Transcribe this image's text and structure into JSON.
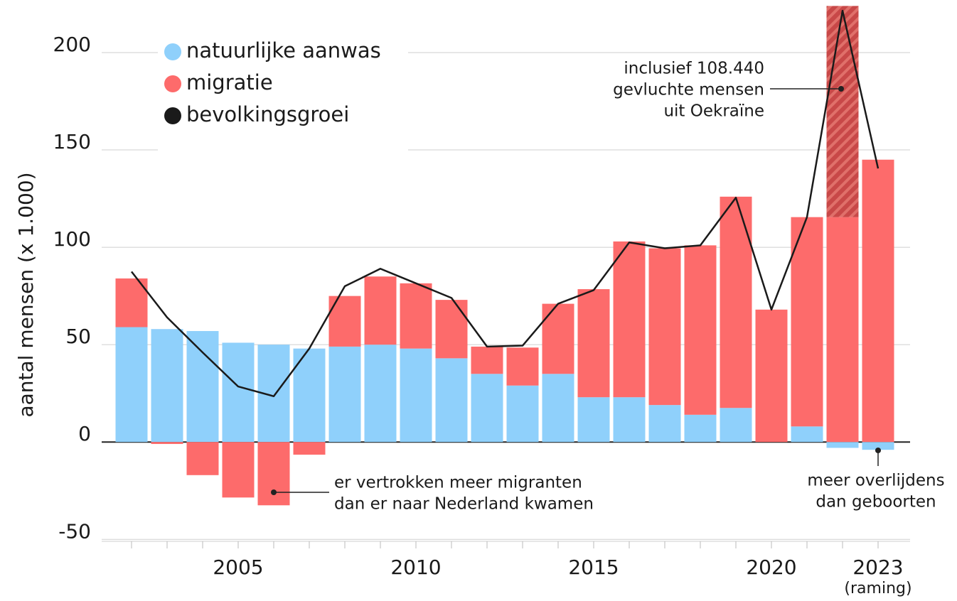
{
  "chart_data": {
    "type": "bar",
    "ylabel": "aantal mensen (x 1.000)",
    "x": [
      2002,
      2003,
      2004,
      2005,
      2006,
      2007,
      2008,
      2009,
      2010,
      2011,
      2012,
      2013,
      2014,
      2015,
      2016,
      2017,
      2018,
      2019,
      2020,
      2021,
      2022,
      2023
    ],
    "xlim": [
      2001.16,
      2023.9
    ],
    "xticks": [
      2005,
      2010,
      2015,
      2020,
      2023
    ],
    "xtick_note": "(raming)",
    "ylim": [
      -51,
      227
    ],
    "yticks": [
      -50,
      0,
      50,
      100,
      150,
      200
    ],
    "grid": true,
    "series": [
      {
        "name": "natuurlijke aanwas",
        "color": "#8fd0fb",
        "kind": "bar",
        "values": [
          59,
          58,
          57,
          51,
          50,
          48,
          49,
          50,
          48,
          43,
          35,
          29,
          35,
          23,
          23,
          19,
          14,
          17.5,
          0,
          8,
          -3,
          -4
        ]
      },
      {
        "name": "migratie",
        "color": "#fd6b6b",
        "kind": "bar",
        "values": [
          25,
          -1,
          -17,
          -28.5,
          -32.5,
          -6.5,
          26,
          35,
          33.5,
          30,
          14,
          19.5,
          36,
          55.5,
          80,
          80.5,
          87,
          108.5,
          68,
          107.5,
          115.5,
          145
        ]
      },
      {
        "name": "bevolkingsgroei",
        "color": "#1a1a1a",
        "kind": "line",
        "values": [
          87.5,
          64,
          46,
          28.5,
          23.5,
          48,
          80,
          89,
          81.5,
          74,
          49,
          49.5,
          71,
          78,
          102.5,
          99.5,
          101,
          125.5,
          68,
          115.5,
          221.5,
          140.5
        ]
      },
      {
        "color": "#c84848",
        "kind": "bar",
        "hatch": true,
        "values": [
          null,
          null,
          null,
          null,
          null,
          null,
          null,
          null,
          null,
          null,
          null,
          null,
          null,
          null,
          null,
          null,
          null,
          null,
          null,
          null,
          108.44,
          null
        ]
      }
    ],
    "annotations": [
      {
        "lines": [
          "inclusief 108.440",
          "gevluchte mensen",
          "uit Oekraïne"
        ]
      },
      {
        "lines": [
          "er vertrokken meer migranten",
          "dan er naar Nederland kwamen"
        ]
      },
      {
        "lines": [
          "meer overlijdens",
          "dan geboorten"
        ]
      }
    ]
  }
}
